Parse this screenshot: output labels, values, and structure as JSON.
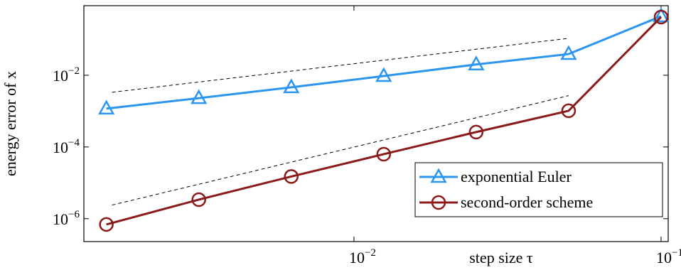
{
  "chart_data": {
    "type": "line",
    "xlabel": "step size τ",
    "ylabel": "energy error of x",
    "log_x": true,
    "log_y": true,
    "x": [
      0.0015625,
      0.003125,
      0.00625,
      0.0125,
      0.025,
      0.05,
      0.1
    ],
    "series": [
      {
        "name": "exponential Euler",
        "color": "#2c95ef",
        "marker": "triangle",
        "values": [
          0.00117,
          0.0023,
          0.0046,
          0.0095,
          0.02,
          0.039,
          0.44
        ]
      },
      {
        "name": "second-order scheme",
        "color": "#8b1a1a",
        "marker": "circle",
        "values": [
          6.9e-07,
          3.4e-06,
          1.5e-05,
          6.3e-05,
          0.00026,
          0.00102,
          0.42
        ]
      }
    ],
    "reference_lines": [
      {
        "x": [
          0.00163,
          0.05
        ],
        "values": [
          0.00335,
          0.107
        ]
      },
      {
        "x": [
          0.00163,
          0.05
        ],
        "values": [
          2.4e-06,
          0.0027
        ]
      }
    ],
    "xlim": [
      0.00132,
      0.1055
    ],
    "ylim": [
      2.3e-07,
      0.87
    ],
    "xticks": [
      {
        "value": 0.01,
        "label": "10",
        "exponent": "−2"
      },
      {
        "value": 0.1,
        "label": "10",
        "exponent": "−1"
      }
    ],
    "yticks": [
      {
        "value": 1e-06,
        "label": "10",
        "exponent": "−6"
      },
      {
        "value": 0.0001,
        "label": "10",
        "exponent": "−4"
      },
      {
        "value": 0.01,
        "label": "10",
        "exponent": "−2"
      }
    ],
    "legend": "lower right"
  }
}
